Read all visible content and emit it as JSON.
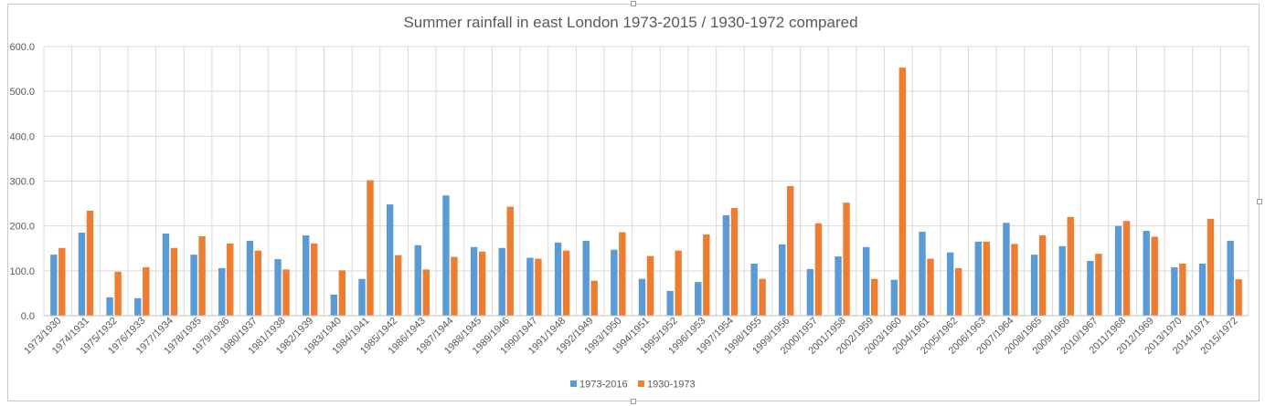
{
  "chart_data": {
    "type": "bar",
    "title": "Summer rainfall in east London 1973-2015 / 1930-1972 compared",
    "xlabel": "",
    "ylabel": "",
    "ylim": [
      0,
      600
    ],
    "yticks": [
      "0.0",
      "100.0",
      "200.0",
      "300.0",
      "400.0",
      "500.0",
      "600.0"
    ],
    "grid": true,
    "legend_position": "bottom",
    "categories": [
      "1973/1930",
      "1974/1931",
      "1975/1932",
      "1976/1933",
      "1977/1934",
      "1978/1935",
      "1979/1936",
      "1980/1937",
      "1981/1938",
      "1982/1939",
      "1983/1940",
      "1984/1941",
      "1985/1942",
      "1986/1943",
      "1987/1944",
      "1988/1945",
      "1989/1946",
      "1990/1947",
      "1991/1948",
      "1992/1949",
      "1993/1950",
      "1994/1951",
      "1995/1952",
      "1996/1953",
      "1997/1954",
      "1998/1955",
      "1999/1956",
      "2000/1957",
      "2001/1958",
      "2002/1959",
      "2003/1960",
      "2004/1961",
      "2005/1962",
      "2006/1963",
      "2007/1964",
      "2008/1965",
      "2009/1966",
      "2010/1967",
      "2011/1968",
      "2012/1969",
      "2013/1970",
      "2014/1971",
      "2015/1972"
    ],
    "series": [
      {
        "name": "1973-2016",
        "color": "#5b9bd5",
        "values": [
          136,
          185,
          41,
          39,
          183,
          136,
          106,
          167,
          126,
          179,
          47,
          82,
          248,
          157,
          268,
          153,
          151,
          129,
          163,
          167,
          147,
          82,
          55,
          75,
          224,
          116,
          159,
          104,
          132,
          153,
          80,
          187,
          141,
          165,
          207,
          136,
          155,
          122,
          200,
          189,
          108,
          116,
          167
        ]
      },
      {
        "name": "1930-1973",
        "color": "#ed7d31",
        "values": [
          151,
          234,
          98,
          108,
          151,
          177,
          161,
          145,
          103,
          161,
          101,
          302,
          135,
          103,
          131,
          143,
          243,
          127,
          145,
          78,
          186,
          133,
          145,
          181,
          240,
          82,
          289,
          206,
          252,
          82,
          553,
          127,
          106,
          165,
          160,
          179,
          220,
          138,
          211,
          176,
          116,
          216,
          81
        ]
      }
    ]
  }
}
